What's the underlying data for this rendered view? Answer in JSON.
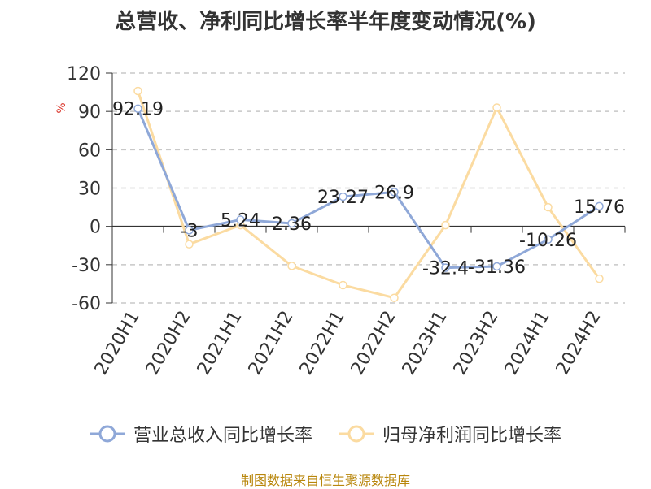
{
  "chart_data": {
    "type": "line",
    "title": "总营收、净利同比增长率半年度变动情况(%)",
    "ylabel": "%",
    "categories": [
      "2020H1",
      "2020H2",
      "2021H1",
      "2021H2",
      "2022H1",
      "2022H2",
      "2023H1",
      "2023H2",
      "2024H1",
      "2024H2"
    ],
    "ylim": [
      -60,
      120
    ],
    "yticks": [
      -60,
      -30,
      0,
      30,
      60,
      90,
      120
    ],
    "grid": true,
    "legend_position": "bottom",
    "series": [
      {
        "name": "营业总收入同比增长率",
        "color": "#8fa8d8",
        "values": [
          92.19,
          -3,
          5.24,
          2.36,
          23.27,
          26.9,
          -32.4,
          -31.36,
          -10.26,
          15.76
        ],
        "labels": [
          "92.19",
          "-3",
          "5.24",
          "2.36",
          "23.27",
          "26.9",
          "-32.4",
          "-31.36",
          "-10.26",
          "15.76"
        ]
      },
      {
        "name": "归母净利润同比增长率",
        "color": "#fbdba1",
        "values": [
          106,
          -14,
          1,
          -31,
          -46,
          -56,
          1,
          93,
          15,
          -41
        ]
      }
    ]
  },
  "source": "制图数据来自恒生聚源数据库"
}
